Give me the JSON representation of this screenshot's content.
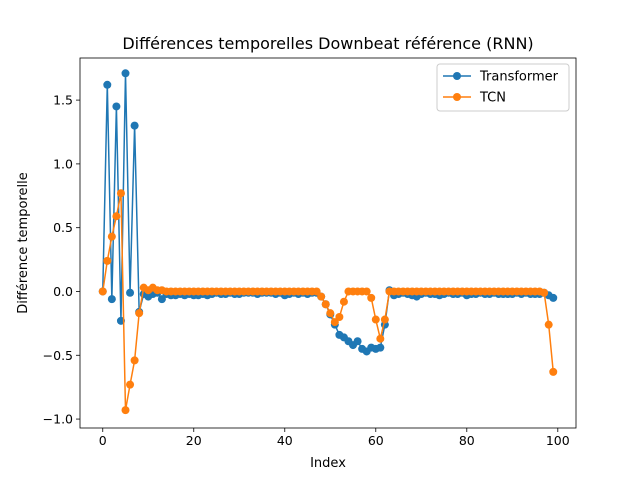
{
  "chart_data": {
    "type": "line",
    "title": "Différences temporelles Downbeat référence (RNN)",
    "xlabel": "Index",
    "ylabel": "Différence temporelle",
    "xlim": [
      -5,
      104
    ],
    "ylim": [
      -1.07,
      1.83
    ],
    "xticks": [
      0,
      20,
      40,
      60,
      80,
      100
    ],
    "xtick_labels": [
      "0",
      "20",
      "40",
      "60",
      "80",
      "100"
    ],
    "yticks": [
      -1.0,
      -0.5,
      0.0,
      0.5,
      1.0,
      1.5
    ],
    "ytick_labels": [
      "−1.0",
      "−0.5",
      "0.0",
      "0.5",
      "1.0",
      "1.5"
    ],
    "grid": false,
    "legend_position": "top-right",
    "series": [
      {
        "name": "Transformer",
        "color": "#1f77b4",
        "marker": "circle",
        "x": [
          0,
          1,
          2,
          3,
          4,
          5,
          6,
          7,
          8,
          9,
          10,
          11,
          12,
          13,
          14,
          15,
          16,
          17,
          18,
          19,
          20,
          21,
          22,
          23,
          24,
          25,
          26,
          27,
          28,
          29,
          30,
          31,
          32,
          33,
          34,
          35,
          36,
          37,
          38,
          39,
          40,
          41,
          42,
          43,
          44,
          45,
          46,
          47,
          48,
          49,
          50,
          51,
          52,
          53,
          54,
          55,
          56,
          57,
          58,
          59,
          60,
          61,
          62,
          63,
          64,
          65,
          66,
          67,
          68,
          69,
          70,
          71,
          72,
          73,
          74,
          75,
          76,
          77,
          78,
          79,
          80,
          81,
          82,
          83,
          84,
          85,
          86,
          87,
          88,
          89,
          90,
          91,
          92,
          93,
          94,
          95,
          96,
          97,
          98,
          99
        ],
        "y": [
          0.0,
          1.62,
          -0.06,
          1.45,
          -0.23,
          1.71,
          -0.01,
          1.3,
          -0.16,
          -0.02,
          -0.04,
          -0.02,
          -0.01,
          -0.06,
          -0.02,
          -0.03,
          -0.03,
          -0.02,
          -0.03,
          -0.02,
          -0.03,
          -0.03,
          -0.02,
          -0.03,
          -0.02,
          -0.01,
          -0.02,
          -0.02,
          -0.01,
          -0.02,
          -0.02,
          -0.01,
          -0.01,
          -0.01,
          -0.02,
          -0.01,
          -0.01,
          -0.01,
          -0.02,
          -0.01,
          -0.03,
          -0.02,
          -0.01,
          -0.02,
          -0.01,
          -0.02,
          -0.01,
          -0.01,
          -0.04,
          -0.1,
          -0.18,
          -0.26,
          -0.34,
          -0.36,
          -0.39,
          -0.42,
          -0.39,
          -0.45,
          -0.47,
          -0.44,
          -0.45,
          -0.44,
          -0.26,
          0.01,
          -0.03,
          -0.02,
          -0.01,
          -0.02,
          -0.03,
          -0.04,
          -0.02,
          -0.01,
          -0.02,
          -0.02,
          -0.03,
          -0.02,
          -0.01,
          -0.02,
          -0.02,
          -0.01,
          -0.03,
          -0.02,
          -0.02,
          -0.01,
          -0.02,
          -0.02,
          -0.01,
          -0.02,
          -0.02,
          -0.02,
          -0.02,
          -0.01,
          -0.02,
          -0.01,
          -0.02,
          -0.02,
          -0.02,
          -0.01,
          -0.03,
          -0.05
        ]
      },
      {
        "name": "TCN",
        "color": "#ff7f0e",
        "marker": "circle",
        "x": [
          0,
          1,
          2,
          3,
          4,
          5,
          6,
          7,
          8,
          9,
          10,
          11,
          12,
          13,
          14,
          15,
          16,
          17,
          18,
          19,
          20,
          21,
          22,
          23,
          24,
          25,
          26,
          27,
          28,
          29,
          30,
          31,
          32,
          33,
          34,
          35,
          36,
          37,
          38,
          39,
          40,
          41,
          42,
          43,
          44,
          45,
          46,
          47,
          48,
          49,
          50,
          51,
          52,
          53,
          54,
          55,
          56,
          57,
          58,
          59,
          60,
          61,
          62,
          63,
          64,
          65,
          66,
          67,
          68,
          69,
          70,
          71,
          72,
          73,
          74,
          75,
          76,
          77,
          78,
          79,
          80,
          81,
          82,
          83,
          84,
          85,
          86,
          87,
          88,
          89,
          90,
          91,
          92,
          93,
          94,
          95,
          96,
          97,
          98,
          99
        ],
        "y": [
          0.0,
          0.24,
          0.43,
          0.59,
          0.77,
          -0.93,
          -0.73,
          -0.54,
          -0.17,
          0.03,
          0.01,
          0.03,
          0.01,
          0.01,
          0.0,
          0.0,
          0.0,
          0.0,
          0.0,
          0.0,
          0.0,
          0.0,
          0.0,
          0.0,
          0.0,
          0.0,
          0.0,
          0.0,
          0.0,
          0.0,
          0.0,
          0.0,
          0.0,
          0.0,
          0.0,
          0.0,
          0.0,
          0.0,
          0.0,
          0.0,
          0.0,
          0.0,
          0.0,
          0.0,
          0.0,
          0.0,
          0.0,
          0.0,
          -0.04,
          -0.1,
          -0.17,
          -0.24,
          -0.2,
          -0.08,
          0.0,
          0.0,
          0.0,
          0.0,
          0.0,
          -0.05,
          -0.22,
          -0.37,
          -0.22,
          0.0,
          0.0,
          0.0,
          0.0,
          0.0,
          0.0,
          0.0,
          0.0,
          0.0,
          0.0,
          0.0,
          0.0,
          0.0,
          0.0,
          0.0,
          0.0,
          0.0,
          0.0,
          0.0,
          0.0,
          0.0,
          0.0,
          0.0,
          0.0,
          0.0,
          0.0,
          0.0,
          0.0,
          0.0,
          0.0,
          0.0,
          0.0,
          0.0,
          0.0,
          -0.01,
          -0.26,
          -0.63
        ]
      }
    ]
  }
}
